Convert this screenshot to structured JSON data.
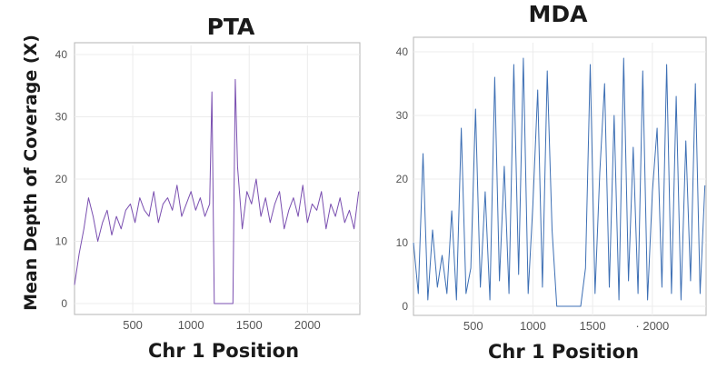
{
  "figure": {
    "shared_ylabel": "Mean Depth of Coverage (X)"
  },
  "colors": {
    "pta_series": "#7a4fb0",
    "mda_series": "#3d6fb4"
  },
  "chart_data": [
    {
      "type": "line",
      "title": "PTA",
      "xlabel": "Chr 1 Position",
      "ylabel": "Mean Depth of Coverage (X)",
      "xlim": [
        0,
        2450
      ],
      "ylim": [
        0,
        40
      ],
      "x_ticks": [
        500,
        1000,
        1500,
        2000
      ],
      "x_tick_labels": [
        "500",
        "1000",
        "1500",
        "2000"
      ],
      "y_ticks": [
        0,
        10,
        20,
        30,
        40
      ],
      "y_tick_labels": [
        "0",
        "10",
        "20",
        "30",
        "40"
      ],
      "grid": true,
      "series": [
        {
          "color": "#7a4fb0",
          "x": [
            0,
            40,
            80,
            120,
            160,
            200,
            240,
            280,
            320,
            360,
            400,
            440,
            480,
            520,
            560,
            600,
            640,
            680,
            720,
            760,
            800,
            840,
            880,
            920,
            960,
            1000,
            1040,
            1080,
            1120,
            1160,
            1180,
            1200,
            1240,
            1280,
            1320,
            1360,
            1380,
            1400,
            1440,
            1480,
            1520,
            1560,
            1600,
            1640,
            1680,
            1720,
            1760,
            1800,
            1840,
            1880,
            1920,
            1960,
            2000,
            2040,
            2080,
            2120,
            2160,
            2200,
            2240,
            2280,
            2320,
            2360,
            2400,
            2440
          ],
          "y": [
            3,
            8,
            12,
            17,
            14,
            10,
            13,
            15,
            11,
            14,
            12,
            15,
            16,
            13,
            17,
            15,
            14,
            18,
            13,
            16,
            17,
            15,
            19,
            14,
            16,
            18,
            15,
            17,
            14,
            16,
            34,
            0,
            0,
            0,
            0,
            0,
            36,
            22,
            12,
            18,
            16,
            20,
            14,
            17,
            13,
            16,
            18,
            12,
            15,
            17,
            14,
            19,
            13,
            16,
            15,
            18,
            12,
            16,
            14,
            17,
            13,
            15,
            12,
            18
          ]
        }
      ]
    },
    {
      "type": "line",
      "title": "MDA",
      "xlabel": "Chr 1 Position",
      "ylabel": "",
      "xlim": [
        0,
        2450
      ],
      "ylim": [
        0,
        40
      ],
      "x_ticks": [
        500,
        1000,
        1500,
        2000
      ],
      "x_tick_labels": [
        "500",
        "1000",
        "1500",
        "· 2000"
      ],
      "y_ticks": [
        0,
        10,
        20,
        30,
        40
      ],
      "y_tick_labels": [
        "0",
        "10",
        "20",
        "30",
        "40"
      ],
      "grid": true,
      "series": [
        {
          "color": "#3d6fb4",
          "x": [
            0,
            40,
            80,
            120,
            160,
            200,
            240,
            280,
            320,
            360,
            400,
            440,
            480,
            520,
            560,
            600,
            640,
            680,
            720,
            760,
            800,
            840,
            880,
            920,
            960,
            1000,
            1040,
            1080,
            1120,
            1160,
            1200,
            1240,
            1280,
            1320,
            1360,
            1400,
            1440,
            1480,
            1520,
            1560,
            1600,
            1640,
            1680,
            1720,
            1760,
            1800,
            1840,
            1880,
            1920,
            1960,
            2000,
            2040,
            2080,
            2120,
            2160,
            2200,
            2240,
            2280,
            2320,
            2360,
            2400,
            2440
          ],
          "y": [
            10,
            2,
            24,
            1,
            12,
            3,
            8,
            2,
            15,
            1,
            28,
            2,
            6,
            31,
            3,
            18,
            1,
            36,
            4,
            22,
            2,
            38,
            5,
            39,
            2,
            16,
            34,
            3,
            37,
            12,
            0,
            0,
            0,
            0,
            0,
            0,
            6,
            38,
            2,
            21,
            35,
            3,
            30,
            1,
            39,
            4,
            25,
            2,
            37,
            1,
            18,
            28,
            3,
            38,
            2,
            33,
            1,
            26,
            4,
            35,
            2,
            19
          ]
        }
      ]
    }
  ]
}
